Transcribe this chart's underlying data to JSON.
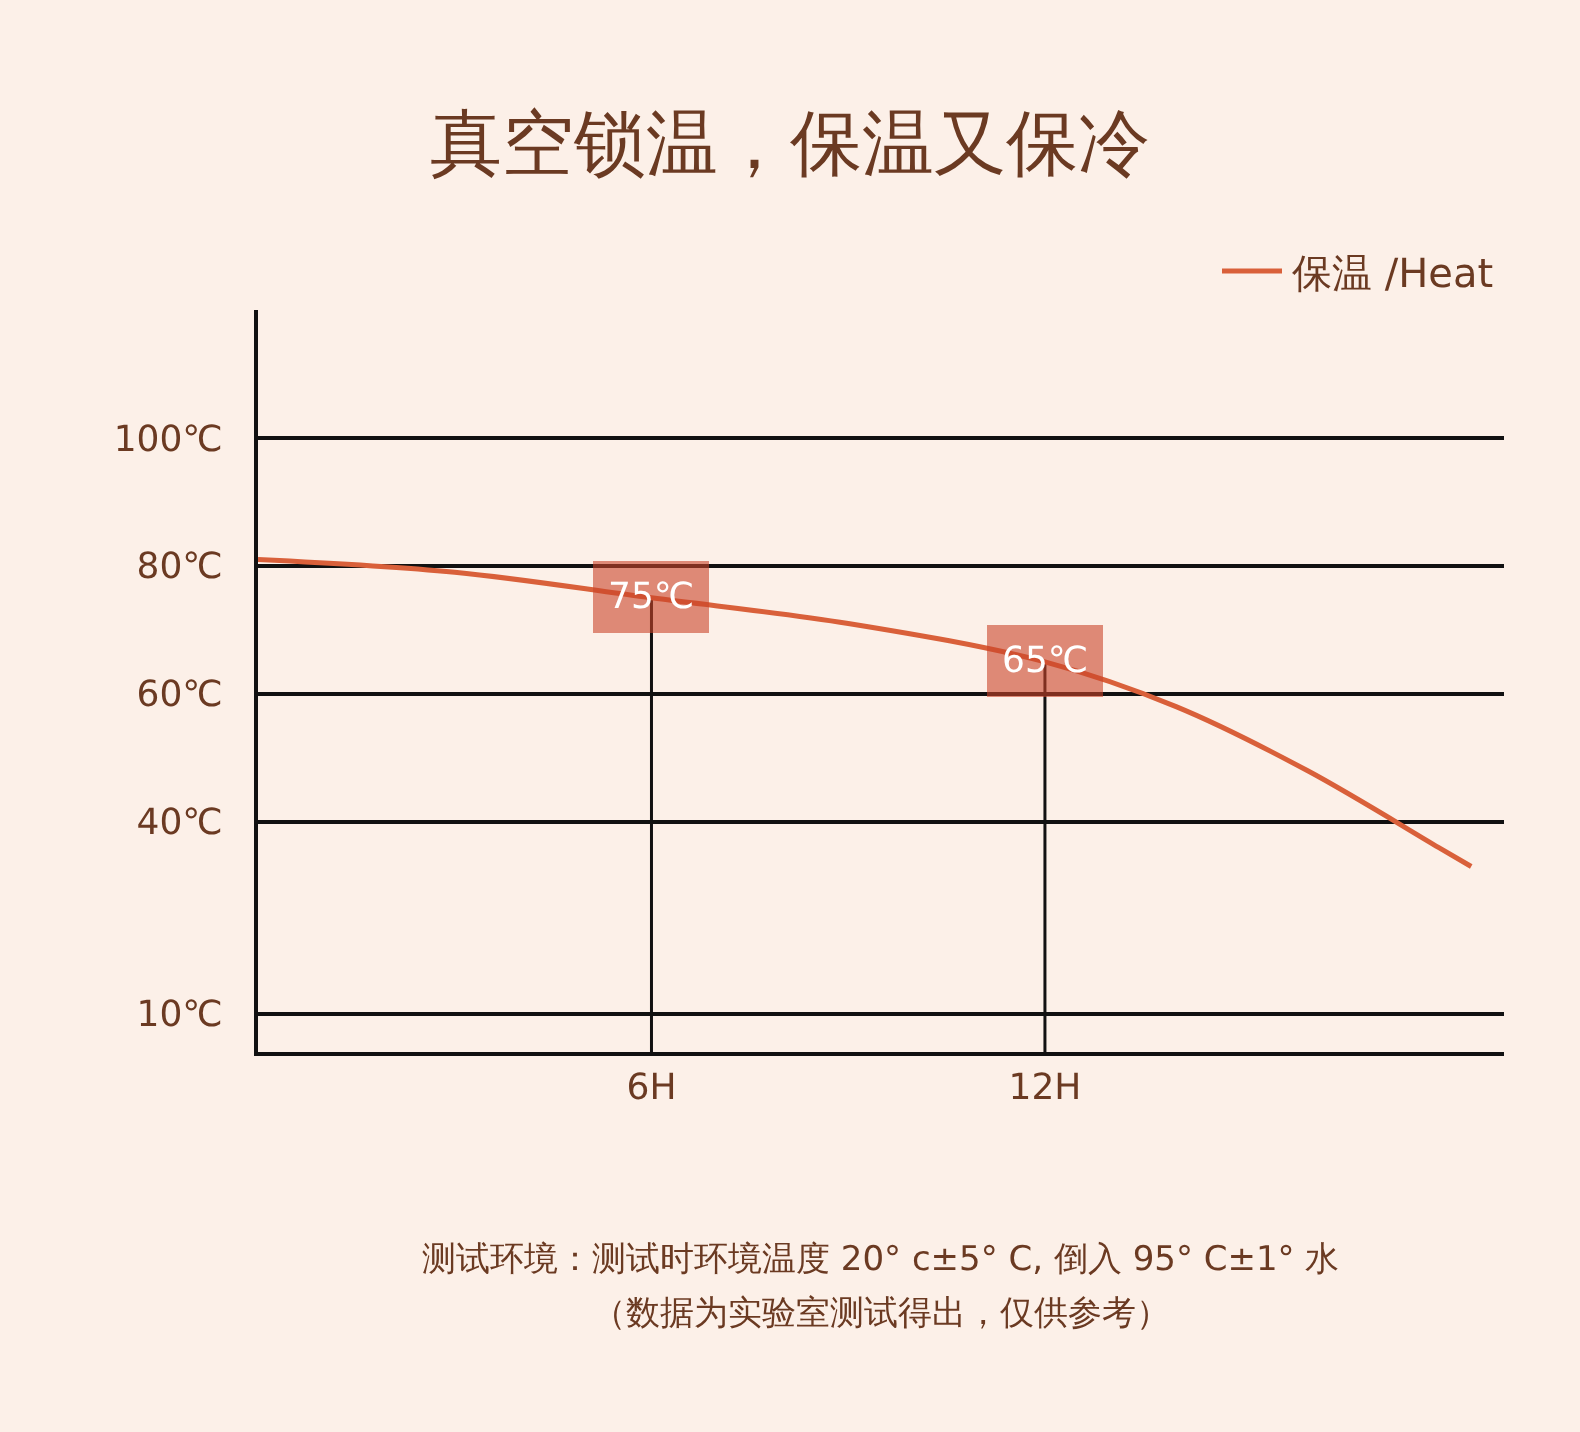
{
  "chart_data": {
    "type": "line",
    "title": "真空锁温，保温又保冷",
    "x": [
      0,
      3,
      6,
      9,
      12,
      14,
      16,
      18,
      18.5
    ],
    "series": [
      {
        "name": "保温 /Heat",
        "color": "#d9603a",
        "values": [
          81,
          79,
          75,
          71,
          65,
          58,
          48,
          36,
          33
        ]
      }
    ],
    "xlim": [
      0,
      19
    ],
    "xticks": [
      {
        "value": 6,
        "label": "6H"
      },
      {
        "value": 12,
        "label": "12H"
      }
    ],
    "ylim": [
      4,
      120
    ],
    "yticks": [
      {
        "value": 10,
        "label": "10℃"
      },
      {
        "value": 40,
        "label": "40℃"
      },
      {
        "value": 60,
        "label": "60℃"
      },
      {
        "value": 80,
        "label": "80℃"
      },
      {
        "value": 100,
        "label": "100℃"
      }
    ],
    "grid": "y",
    "legend": "top right",
    "marker": "none",
    "line_style": "solid",
    "ref_lines": [
      {
        "axis": "x",
        "value": 6,
        "label": null,
        "color": "#111111"
      },
      {
        "axis": "x",
        "value": 12,
        "label": null,
        "color": "#111111"
      }
    ],
    "annotations": [
      {
        "text": "75℃",
        "x": 6,
        "y": 75
      },
      {
        "text": "65℃",
        "x": 12,
        "y": 65
      },
      "测试环境：测试时环境温度 20° c±5° C, 倒入 95° C±1° 水",
      "（数据为实验室测试得出，仅供参考）"
    ]
  }
}
